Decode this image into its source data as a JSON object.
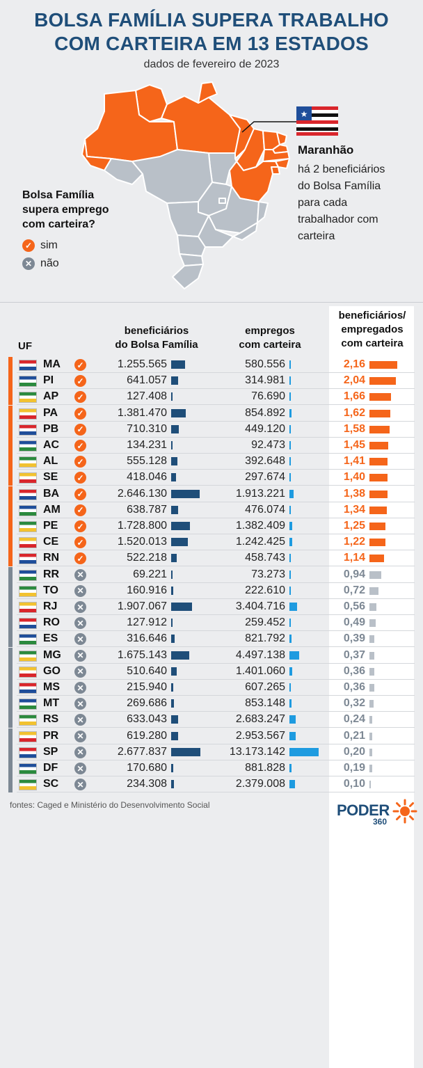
{
  "title_line1": "BOLSA FAMÍLIA SUPERA TRABALHO",
  "title_line2": "COM CARTEIRA EM 13 ESTADOS",
  "subtitle": "dados de fevereiro de 2023",
  "callout": {
    "title": "Maranhão",
    "lines": [
      "há 2 beneficiários",
      "do Bolsa Família",
      "para cada",
      "trabalhador com",
      "carteira"
    ]
  },
  "legend": {
    "question": [
      "Bolsa Família",
      "supera emprego",
      "com carteira?"
    ],
    "yes": "sim",
    "no": "não"
  },
  "colors": {
    "yes": "#f5651a",
    "no": "#b9c0c8",
    "navy": "#1f4e79",
    "blue": "#1e9be0",
    "side_yes": "#f5651a",
    "side_no": "#7d8894"
  },
  "headers": {
    "uf": "UF",
    "col1": [
      "beneficiários",
      "do Bolsa Família"
    ],
    "col2": [
      "empregos",
      "com carteira"
    ],
    "col3": [
      "beneficiários/",
      "empregados",
      "com carteira"
    ]
  },
  "chart_data": {
    "type": "table",
    "columns": [
      "UF",
      "beneficiários do Bolsa Família",
      "empregos com carteira",
      "beneficiários/empregados com carteira"
    ],
    "rows": [
      {
        "uf": "MA",
        "yes": true,
        "ben": "1.255.565",
        "ben_v": 1255565,
        "emp": "580.556",
        "emp_v": 580556,
        "ratio": "2,16",
        "ratio_v": 2.16
      },
      {
        "uf": "PI",
        "yes": true,
        "ben": "641.057",
        "ben_v": 641057,
        "emp": "314.981",
        "emp_v": 314981,
        "ratio": "2,04",
        "ratio_v": 2.04
      },
      {
        "uf": "AP",
        "yes": true,
        "ben": "127.408",
        "ben_v": 127408,
        "emp": "76.690",
        "emp_v": 76690,
        "ratio": "1,66",
        "ratio_v": 1.66
      },
      {
        "uf": "PA",
        "yes": true,
        "ben": "1.381.470",
        "ben_v": 1381470,
        "emp": "854.892",
        "emp_v": 854892,
        "ratio": "1,62",
        "ratio_v": 1.62
      },
      {
        "uf": "PB",
        "yes": true,
        "ben": "710.310",
        "ben_v": 710310,
        "emp": "449.120",
        "emp_v": 449120,
        "ratio": "1,58",
        "ratio_v": 1.58
      },
      {
        "uf": "AC",
        "yes": true,
        "ben": "134.231",
        "ben_v": 134231,
        "emp": "92.473",
        "emp_v": 92473,
        "ratio": "1,45",
        "ratio_v": 1.45
      },
      {
        "uf": "AL",
        "yes": true,
        "ben": "555.128",
        "ben_v": 555128,
        "emp": "392.648",
        "emp_v": 392648,
        "ratio": "1,41",
        "ratio_v": 1.41
      },
      {
        "uf": "SE",
        "yes": true,
        "ben": "418.046",
        "ben_v": 418046,
        "emp": "297.674",
        "emp_v": 297674,
        "ratio": "1,40",
        "ratio_v": 1.4
      },
      {
        "uf": "BA",
        "yes": true,
        "ben": "2.646.130",
        "ben_v": 2646130,
        "emp": "1.913.221",
        "emp_v": 1913221,
        "ratio": "1,38",
        "ratio_v": 1.38
      },
      {
        "uf": "AM",
        "yes": true,
        "ben": "638.787",
        "ben_v": 638787,
        "emp": "476.074",
        "emp_v": 476074,
        "ratio": "1,34",
        "ratio_v": 1.34
      },
      {
        "uf": "PE",
        "yes": true,
        "ben": "1.728.800",
        "ben_v": 1728800,
        "emp": "1.382.409",
        "emp_v": 1382409,
        "ratio": "1,25",
        "ratio_v": 1.25
      },
      {
        "uf": "CE",
        "yes": true,
        "ben": "1.520.013",
        "ben_v": 1520013,
        "emp": "1.242.425",
        "emp_v": 1242425,
        "ratio": "1,22",
        "ratio_v": 1.22
      },
      {
        "uf": "RN",
        "yes": true,
        "ben": "522.218",
        "ben_v": 522218,
        "emp": "458.743",
        "emp_v": 458743,
        "ratio": "1,14",
        "ratio_v": 1.14
      },
      {
        "uf": "RR",
        "yes": false,
        "ben": "69.221",
        "ben_v": 69221,
        "emp": "73.273",
        "emp_v": 73273,
        "ratio": "0,94",
        "ratio_v": 0.94
      },
      {
        "uf": "TO",
        "yes": false,
        "ben": "160.916",
        "ben_v": 160916,
        "emp": "222.610",
        "emp_v": 222610,
        "ratio": "0,72",
        "ratio_v": 0.72
      },
      {
        "uf": "RJ",
        "yes": false,
        "ben": "1.907.067",
        "ben_v": 1907067,
        "emp": "3.404.716",
        "emp_v": 3404716,
        "ratio": "0,56",
        "ratio_v": 0.56
      },
      {
        "uf": "RO",
        "yes": false,
        "ben": "127.912",
        "ben_v": 127912,
        "emp": "259.452",
        "emp_v": 259452,
        "ratio": "0,49",
        "ratio_v": 0.49
      },
      {
        "uf": "ES",
        "yes": false,
        "ben": "316.646",
        "ben_v": 316646,
        "emp": "821.792",
        "emp_v": 821792,
        "ratio": "0,39",
        "ratio_v": 0.39
      },
      {
        "uf": "MG",
        "yes": false,
        "ben": "1.675.143",
        "ben_v": 1675143,
        "emp": "4.497.138",
        "emp_v": 4497138,
        "ratio": "0,37",
        "ratio_v": 0.37
      },
      {
        "uf": "GO",
        "yes": false,
        "ben": "510.640",
        "ben_v": 510640,
        "emp": "1.401.060",
        "emp_v": 1401060,
        "ratio": "0,36",
        "ratio_v": 0.36
      },
      {
        "uf": "MS",
        "yes": false,
        "ben": "215.940",
        "ben_v": 215940,
        "emp": "607.265",
        "emp_v": 607265,
        "ratio": "0,36",
        "ratio_v": 0.36
      },
      {
        "uf": "MT",
        "yes": false,
        "ben": "269.686",
        "ben_v": 269686,
        "emp": "853.148",
        "emp_v": 853148,
        "ratio": "0,32",
        "ratio_v": 0.32
      },
      {
        "uf": "RS",
        "yes": false,
        "ben": "633.043",
        "ben_v": 633043,
        "emp": "2.683.247",
        "emp_v": 2683247,
        "ratio": "0,24",
        "ratio_v": 0.24
      },
      {
        "uf": "PR",
        "yes": false,
        "ben": "619.280",
        "ben_v": 619280,
        "emp": "2.953.567",
        "emp_v": 2953567,
        "ratio": "0,21",
        "ratio_v": 0.21
      },
      {
        "uf": "SP",
        "yes": false,
        "ben": "2.677.837",
        "ben_v": 2677837,
        "emp": "13.173.142",
        "emp_v": 13173142,
        "ratio": "0,20",
        "ratio_v": 0.2
      },
      {
        "uf": "DF",
        "yes": false,
        "ben": "170.680",
        "ben_v": 170680,
        "emp": "881.828",
        "emp_v": 881828,
        "ratio": "0,19",
        "ratio_v": 0.19
      },
      {
        "uf": "SC",
        "yes": false,
        "ben": "234.308",
        "ben_v": 234308,
        "emp": "2.379.008",
        "emp_v": 2379008,
        "ratio": "0,10",
        "ratio_v": 0.1
      }
    ]
  },
  "footer": "fontes: Caged e Ministério do Desenvolvimento Social",
  "logo": {
    "name": "PODER",
    "number": "360"
  }
}
